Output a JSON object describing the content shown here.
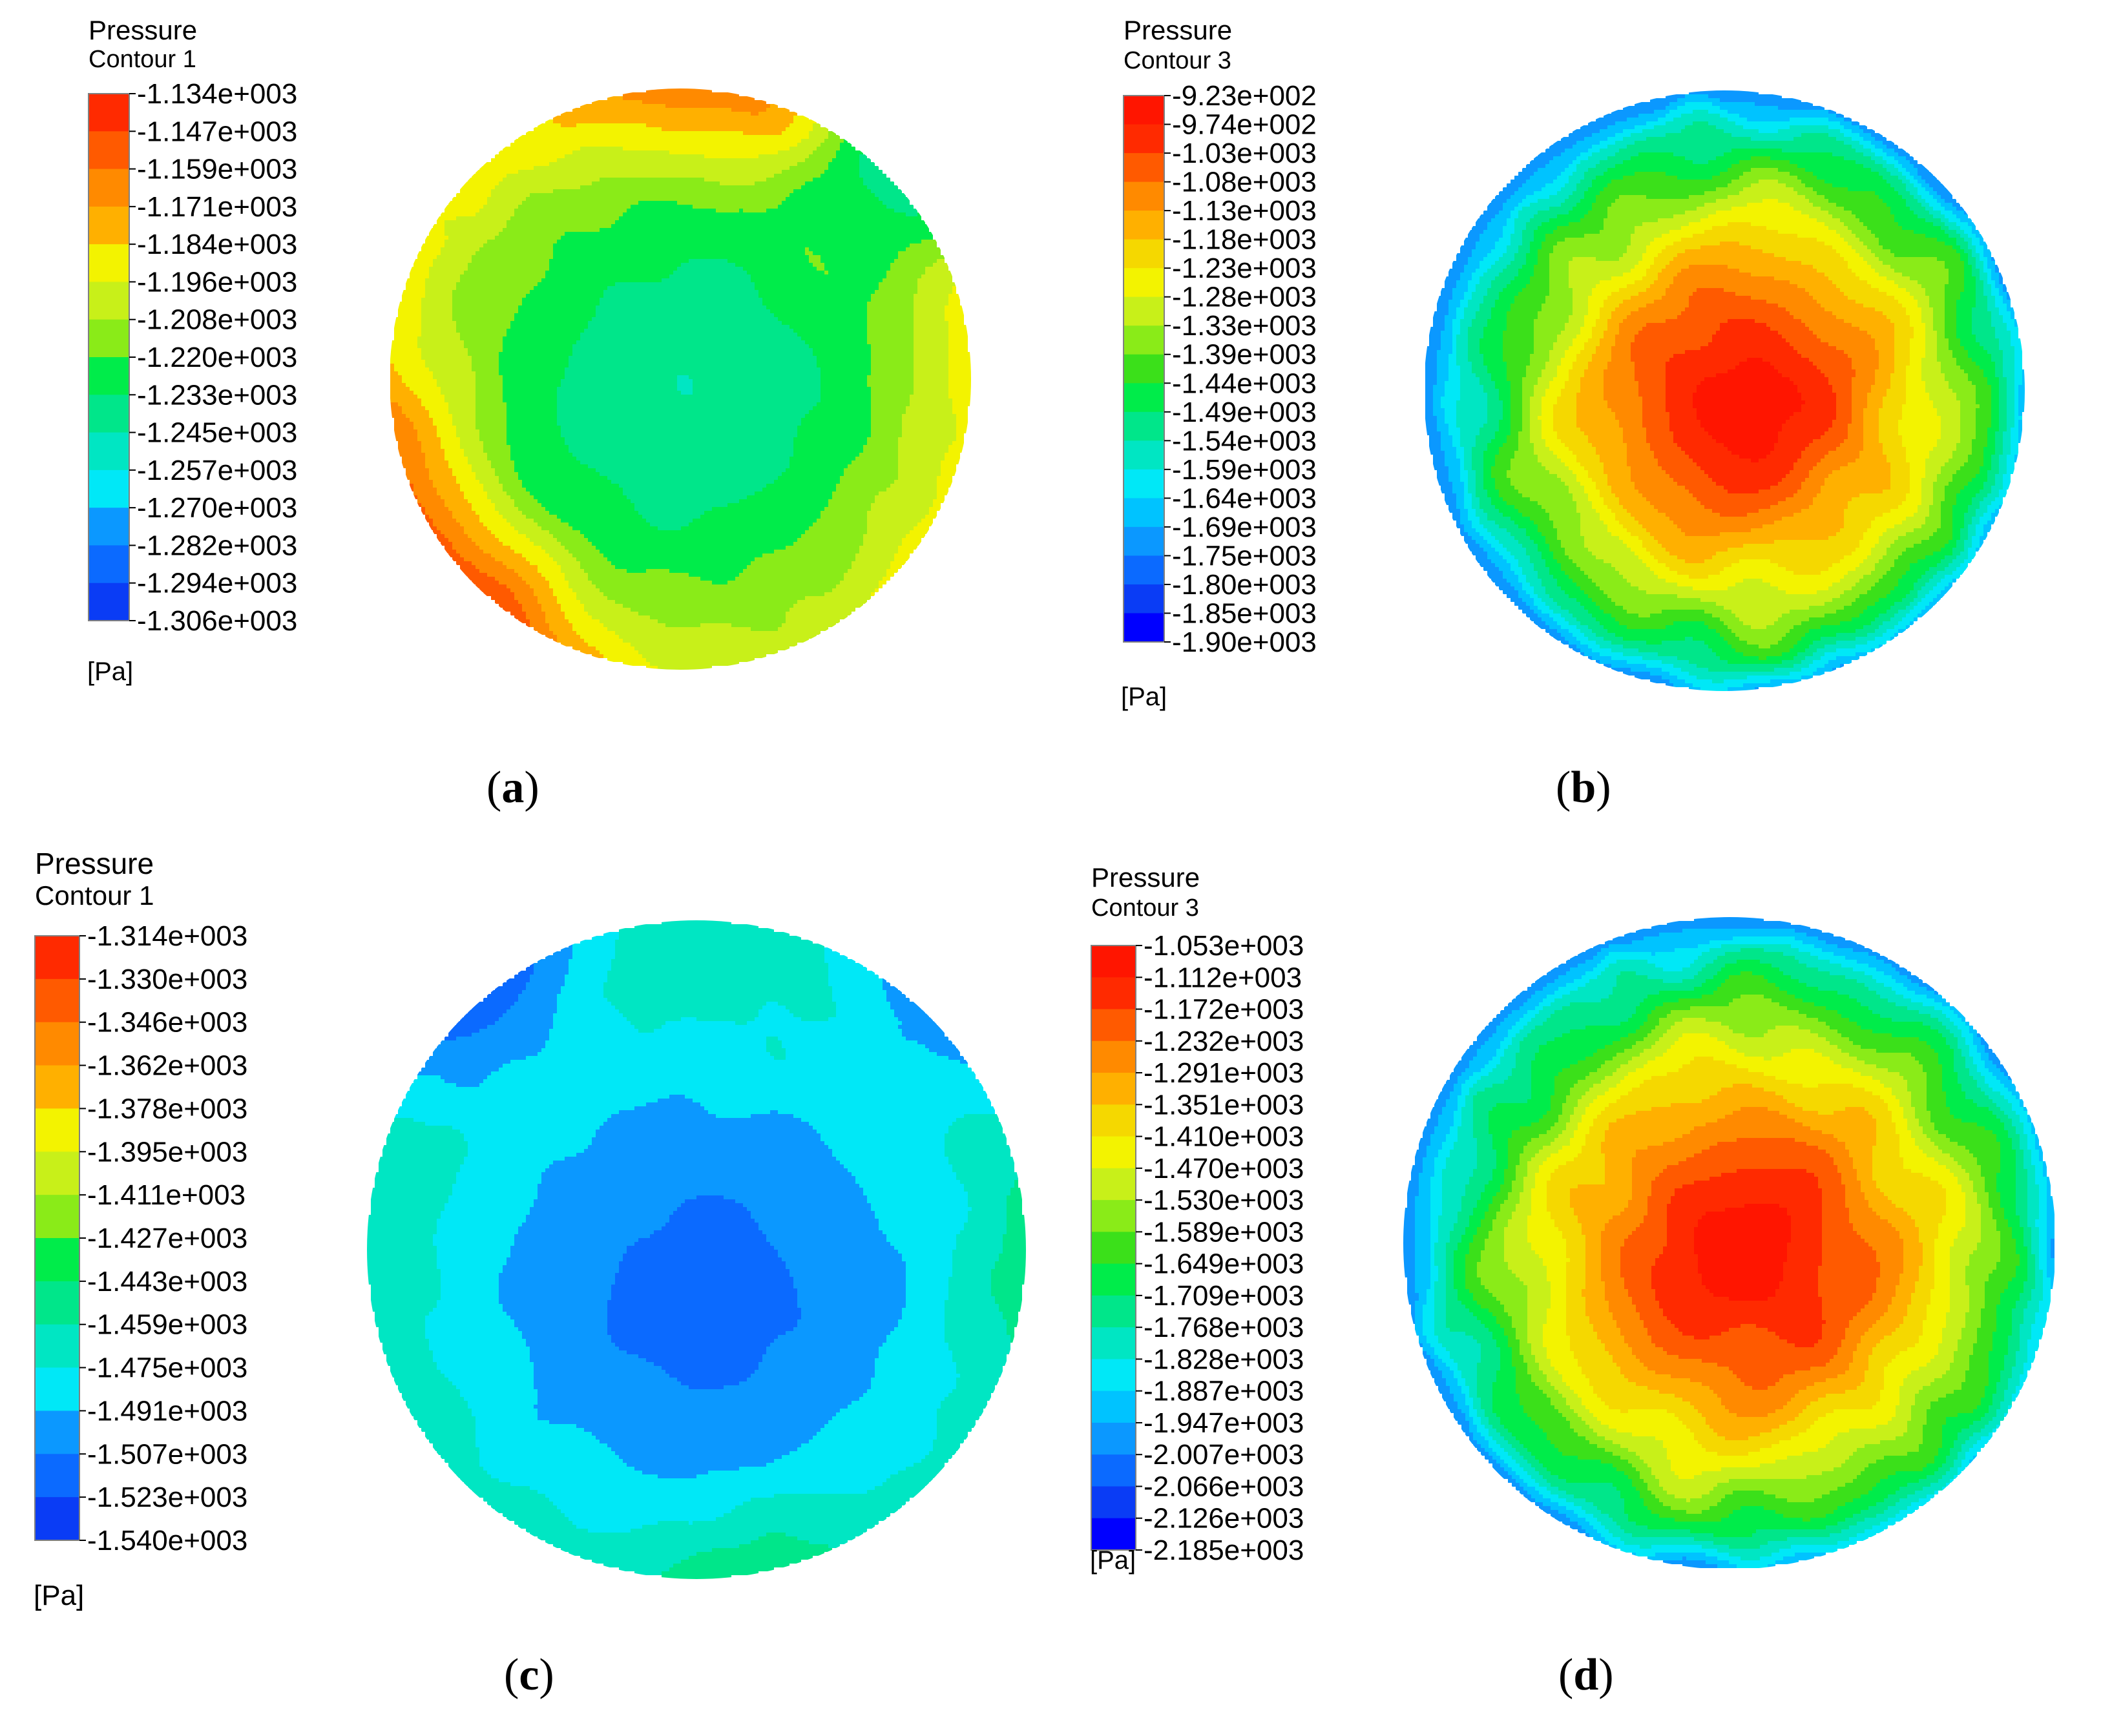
{
  "figure": {
    "panels": [
      {
        "id": "a",
        "caption_label": "a"
      },
      {
        "id": "b",
        "caption_label": "b"
      },
      {
        "id": "c",
        "caption_label": "c"
      },
      {
        "id": "d",
        "caption_label": "d"
      }
    ]
  },
  "palette": [
    "#0000ff",
    "#0a3cf5",
    "#0b6aff",
    "#0b98ff",
    "#00c3ff",
    "#00e8f7",
    "#00e6c3",
    "#00e68a",
    "#00ec4a",
    "#3be01a",
    "#8aeb18",
    "#c8f019",
    "#f3f300",
    "#f5d800",
    "#ffb000",
    "#ff8a00",
    "#ff5a00",
    "#ff2a00",
    "#ff1500"
  ],
  "chart_data": [
    {
      "type": "heatmap",
      "panel": "a",
      "title": "Pressure",
      "subtitle": "Contour 1",
      "unit": "[Pa]",
      "caption": "(a)",
      "legend_levels": [
        "-1.134e+003",
        "-1.147e+003",
        "-1.159e+003",
        "-1.171e+003",
        "-1.184e+003",
        "-1.196e+003",
        "-1.208e+003",
        "-1.220e+003",
        "-1.233e+003",
        "-1.245e+003",
        "-1.257e+003",
        "-1.270e+003",
        "-1.282e+003",
        "-1.294e+003",
        "-1.306e+003"
      ],
      "range": [
        -1306,
        -1134
      ],
      "field": {
        "center_value": -1245,
        "rim_value": -1196,
        "hotspots": [
          {
            "angle_deg": 230,
            "value": -1150
          },
          {
            "angle_deg": 195,
            "value": -1165
          },
          {
            "angle_deg": 70,
            "value": -1160
          },
          {
            "angle_deg": 20,
            "value": -1180
          },
          {
            "angle_deg": 330,
            "value": -1185
          },
          {
            "angle_deg": 100,
            "value": -1175
          },
          {
            "angle_deg": 45,
            "value": -1255
          }
        ]
      }
    },
    {
      "type": "heatmap",
      "panel": "b",
      "title": "Pressure",
      "subtitle": "Contour 3",
      "unit": "[Pa]",
      "caption": "(b)",
      "legend_levels": [
        "-9.23e+002",
        "-9.74e+002",
        "-1.03e+003",
        "-1.08e+003",
        "-1.13e+003",
        "-1.18e+003",
        "-1.23e+003",
        "-1.28e+003",
        "-1.33e+003",
        "-1.39e+003",
        "-1.44e+003",
        "-1.49e+003",
        "-1.54e+003",
        "-1.59e+003",
        "-1.64e+003",
        "-1.69e+003",
        "-1.75e+003",
        "-1.80e+003",
        "-1.85e+003",
        "-1.90e+003"
      ],
      "range": [
        -1900,
        -923
      ],
      "field": {
        "center_value": -940,
        "rim_value": -1640,
        "hotspots": []
      }
    },
    {
      "type": "heatmap",
      "panel": "c",
      "title": "Pressure",
      "subtitle": "Contour 1",
      "unit": "[Pa]",
      "caption": "(c)",
      "legend_levels": [
        "-1.314e+003",
        "-1.330e+003",
        "-1.346e+003",
        "-1.362e+003",
        "-1.378e+003",
        "-1.395e+003",
        "-1.411e+003",
        "-1.427e+003",
        "-1.443e+003",
        "-1.459e+003",
        "-1.475e+003",
        "-1.491e+003",
        "-1.507e+003",
        "-1.523e+003",
        "-1.540e+003"
      ],
      "range": [
        -1540,
        -1314
      ],
      "field": {
        "center_value": -1515,
        "rim_value": -1460,
        "hotspots": [
          {
            "angle_deg": 130,
            "value": -1520
          },
          {
            "angle_deg": 45,
            "value": -1500
          },
          {
            "angle_deg": 280,
            "value": -1435
          },
          {
            "angle_deg": 355,
            "value": -1450
          }
        ]
      }
    },
    {
      "type": "heatmap",
      "panel": "d",
      "title": "Pressure",
      "subtitle": "Contour 3",
      "unit": "[Pa]",
      "caption": "(d)",
      "legend_levels": [
        "-1.053e+003",
        "-1.112e+003",
        "-1.172e+003",
        "-1.232e+003",
        "-1.291e+003",
        "-1.351e+003",
        "-1.410e+003",
        "-1.470e+003",
        "-1.530e+003",
        "-1.589e+003",
        "-1.649e+003",
        "-1.709e+003",
        "-1.768e+003",
        "-1.828e+003",
        "-1.887e+003",
        "-1.947e+003",
        "-2.007e+003",
        "-2.066e+003",
        "-2.126e+003",
        "-2.185e+003"
      ],
      "range": [
        -2185,
        -1053
      ],
      "field": {
        "center_value": -1070,
        "rim_value": -1870,
        "hotspots": []
      }
    }
  ]
}
